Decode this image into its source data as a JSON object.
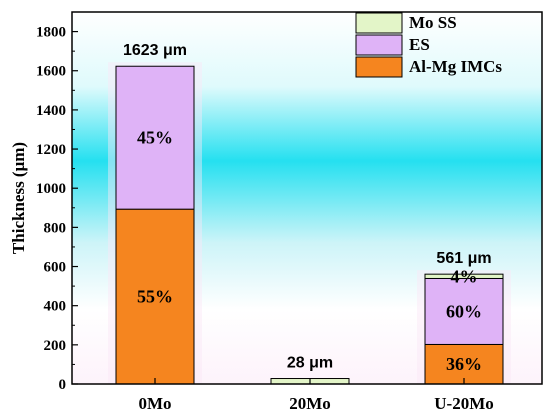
{
  "chart_data": {
    "type": "bar",
    "stacked": true,
    "title": "",
    "xlabel": "",
    "ylabel": "Thickness (μm)",
    "ylim": [
      0,
      1900
    ],
    "yticks": [
      0,
      200,
      400,
      600,
      800,
      1000,
      1200,
      1400,
      1600,
      1800
    ],
    "grid": false,
    "background_gradient": true,
    "legend_position": "top-right",
    "categories": [
      "0Mo",
      "20Mo",
      "U-20Mo"
    ],
    "series": [
      {
        "name": "Al-Mg IMCs",
        "color": "#f5851f",
        "values": [
          893,
          0,
          202
        ],
        "labels": [
          "55%",
          "",
          "36%"
        ]
      },
      {
        "name": "ES",
        "color": "#dfb3f7",
        "values": [
          730,
          0,
          337
        ],
        "labels": [
          "45%",
          "",
          "60%"
        ]
      },
      {
        "name": "Mo SS",
        "color": "#e3f5c8",
        "values": [
          0,
          28,
          22
        ],
        "labels": [
          "",
          "",
          "4%"
        ]
      }
    ],
    "totals": [
      "1623 μm",
      "28 μm",
      "561 μm"
    ],
    "legend_order": [
      "Mo SS",
      "ES",
      "Al-Mg IMCs"
    ]
  }
}
